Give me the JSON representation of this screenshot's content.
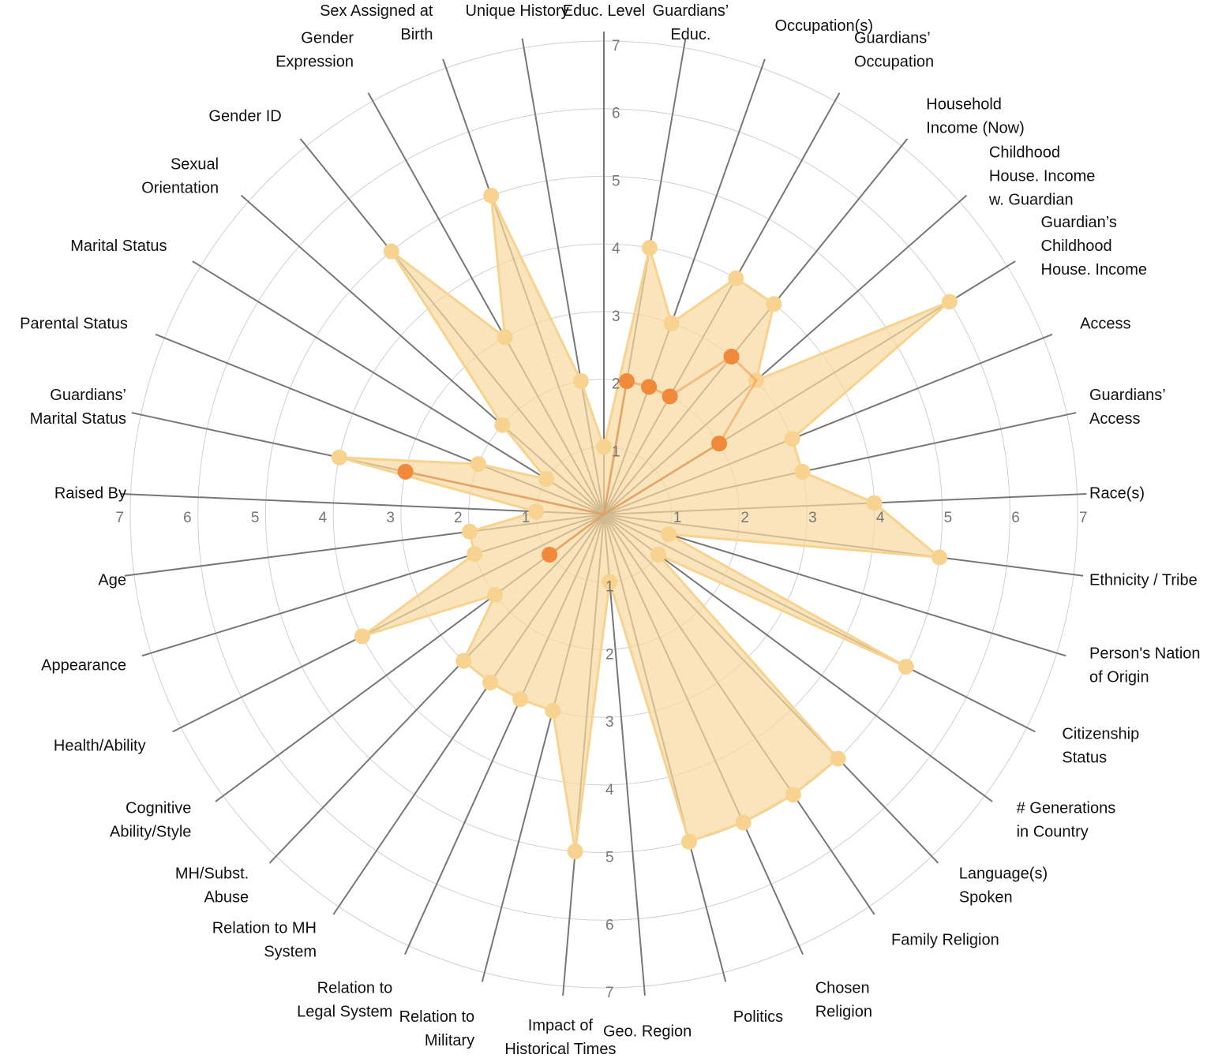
{
  "chart_data": {
    "type": "radar",
    "title": "",
    "rmax": 7,
    "ticks": [
      1,
      2,
      3,
      4,
      5,
      6,
      7
    ],
    "axes": [
      {
        "label": "Educ. Level",
        "lines": [
          "Educ. Level"
        ]
      },
      {
        "label": "Guardians' Educ.",
        "lines": [
          "Guardians’",
          "Educ."
        ]
      },
      {
        "label": "Occupation(s)",
        "lines": [
          "Occupation(s)"
        ]
      },
      {
        "label": "Guardians' Occupation",
        "lines": [
          "Guardians’",
          "Occupation"
        ]
      },
      {
        "label": "Household Income (Now)",
        "lines": [
          "Household",
          "Income (Now)"
        ]
      },
      {
        "label": "Childhood House. Income w. Guardian",
        "lines": [
          "Childhood",
          "House. Income",
          "w. Guardian"
        ]
      },
      {
        "label": "Guardian's Childhood House. Income",
        "lines": [
          "Guardian’s",
          "Childhood",
          "House. Income"
        ]
      },
      {
        "label": "Access",
        "lines": [
          "Access"
        ]
      },
      {
        "label": "Guardians' Access",
        "lines": [
          "Guardians’",
          "Access"
        ]
      },
      {
        "label": "Race(s)",
        "lines": [
          "Race(s)"
        ]
      },
      {
        "label": "Ethnicity / Tribe",
        "lines": [
          "Ethnicity / Tribe"
        ]
      },
      {
        "label": "Person's Nation of Origin",
        "lines": [
          "Person's Nation",
          "of Origin"
        ]
      },
      {
        "label": "Citizenship Status",
        "lines": [
          "Citizenship",
          "Status"
        ]
      },
      {
        "label": "# Generations in Country",
        "lines": [
          "# Generations",
          "in Country"
        ]
      },
      {
        "label": "Language(s) Spoken",
        "lines": [
          "Language(s)",
          "Spoken"
        ]
      },
      {
        "label": "Family Religion",
        "lines": [
          "Family Religion"
        ]
      },
      {
        "label": "Chosen Religion",
        "lines": [
          "Chosen",
          "Religion"
        ]
      },
      {
        "label": "Politics",
        "lines": [
          "Politics"
        ]
      },
      {
        "label": "Geo. Region",
        "lines": [
          "Geo. Region"
        ]
      },
      {
        "label": "Impact of Historical Times",
        "lines": [
          "Impact of",
          "Historical Times"
        ]
      },
      {
        "label": "Relation to Military",
        "lines": [
          "Relation to",
          "Military"
        ]
      },
      {
        "label": "Relation to Legal System",
        "lines": [
          "Relation to",
          "Legal System"
        ]
      },
      {
        "label": "Relation to MH System",
        "lines": [
          "Relation to MH",
          "System"
        ]
      },
      {
        "label": "MH/Subst. Abuse",
        "lines": [
          "MH/Subst.",
          "Abuse"
        ]
      },
      {
        "label": "Cognitive Ability/Style",
        "lines": [
          "Cognitive",
          "Ability/Style"
        ]
      },
      {
        "label": "Health/Ability",
        "lines": [
          "Health/Ability"
        ]
      },
      {
        "label": "Appearance",
        "lines": [
          "Appearance"
        ]
      },
      {
        "label": "Age",
        "lines": [
          "Age"
        ]
      },
      {
        "label": "Raised By",
        "lines": [
          "Raised By"
        ]
      },
      {
        "label": "Guardians' Marital Status",
        "lines": [
          "Guardians’",
          "Marital Status"
        ]
      },
      {
        "label": "Parental Status",
        "lines": [
          "Parental Status"
        ]
      },
      {
        "label": "Marital Status",
        "lines": [
          "Marital Status"
        ]
      },
      {
        "label": "Sexual Orientation",
        "lines": [
          "Sexual",
          "Orientation"
        ]
      },
      {
        "label": "Gender ID",
        "lines": [
          "Gender ID"
        ]
      },
      {
        "label": "Gender Expression",
        "lines": [
          "Gender",
          "Expression"
        ]
      },
      {
        "label": "Sex Assigned at Birth",
        "lines": [
          "Sex Assigned at",
          "Birth"
        ]
      },
      {
        "label": "Unique History",
        "lines": [
          "Unique History"
        ]
      }
    ],
    "series": [
      {
        "color": "#f8d38f",
        "fill": "#f7d89e",
        "values": [
          1,
          4,
          3,
          4,
          4,
          3,
          6,
          3,
          3,
          4,
          5,
          1,
          5,
          1,
          5,
          5,
          5,
          5,
          1,
          5,
          3,
          3,
          3,
          3,
          2,
          4,
          2,
          2,
          1,
          4,
          2,
          1,
          2,
          5,
          3,
          5,
          2
        ]
      },
      {
        "color": "#f0893a",
        "fill": "none",
        "values": [
          0,
          2,
          2,
          2,
          3,
          3,
          2,
          0,
          0,
          0,
          0,
          0,
          0,
          0,
          0,
          0,
          0,
          0,
          0,
          0,
          0,
          0,
          0,
          0,
          1,
          0,
          0,
          0,
          0,
          3,
          0,
          0,
          0,
          0,
          0,
          0,
          0
        ],
        "marked": [
          1,
          2,
          3,
          4,
          6,
          24,
          29
        ]
      }
    ]
  }
}
